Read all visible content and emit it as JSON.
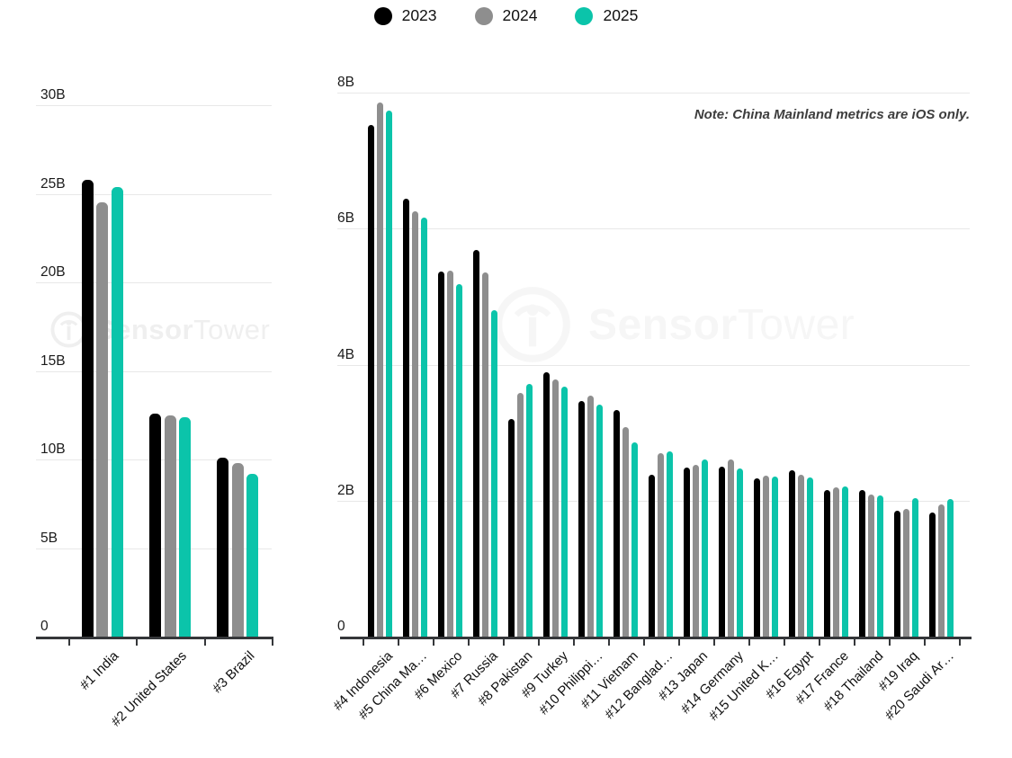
{
  "legend": {
    "items": [
      {
        "label": "2023",
        "color": "#000000"
      },
      {
        "label": "2024",
        "color": "#8e8e8e"
      },
      {
        "label": "2025",
        "color": "#0bc4aa"
      }
    ]
  },
  "note": "Note: China Mainland metrics are iOS only.",
  "watermark": {
    "brand_bold": "Sensor",
    "brand_light": "Tower"
  },
  "colors": {
    "series_2023": "#000000",
    "series_2024": "#8e8e8e",
    "series_2025": "#0bc4aa",
    "axis": "#35373a",
    "gridline": "#e8e8e8",
    "note_text": "#3d3d3d"
  },
  "chart_data": [
    {
      "type": "bar",
      "title": "",
      "unit": "billions of downloads",
      "categories": [
        "#1 India",
        "#2 United States",
        "#3 Brazil"
      ],
      "series": [
        {
          "name": "2023",
          "color": "#000000",
          "values": [
            25.8,
            12.6,
            10.1
          ]
        },
        {
          "name": "2024",
          "color": "#8e8e8e",
          "values": [
            24.5,
            12.5,
            9.8
          ]
        },
        {
          "name": "2025",
          "color": "#0bc4aa",
          "values": [
            25.4,
            12.4,
            9.2
          ]
        }
      ],
      "ylim": [
        0,
        30
      ],
      "yticks": [
        {
          "v": 0,
          "label": "0"
        },
        {
          "v": 5,
          "label": "5B"
        },
        {
          "v": 10,
          "label": "10B"
        },
        {
          "v": 15,
          "label": "15B"
        },
        {
          "v": 20,
          "label": "20B"
        },
        {
          "v": 25,
          "label": "25B"
        },
        {
          "v": 30,
          "label": "30B"
        }
      ],
      "grid": true,
      "legend_position": "top"
    },
    {
      "type": "bar",
      "title": "",
      "unit": "billions of downloads",
      "categories": [
        "#4 Indonesia",
        "#5 China Ma…",
        "#6 Mexico",
        "#7 Russia",
        "#8 Pakistan",
        "#9 Turkey",
        "#10 Philippi…",
        "#11 Vietnam",
        "#12 Banglad…",
        "#13 Japan",
        "#14 Germany",
        "#15 United K…",
        "#16 Egypt",
        "#17 France",
        "#18 Thailand",
        "#19 Iraq",
        "#20 Saudi Ar…"
      ],
      "series": [
        {
          "name": "2023",
          "color": "#000000",
          "values": [
            7.53,
            6.44,
            5.37,
            5.69,
            3.2,
            3.89,
            3.47,
            3.33,
            2.38,
            2.48,
            2.5,
            2.33,
            2.45,
            2.15,
            2.16,
            1.85,
            1.83
          ]
        },
        {
          "name": "2024",
          "color": "#8e8e8e",
          "values": [
            7.86,
            6.25,
            5.38,
            5.35,
            3.59,
            3.78,
            3.55,
            3.08,
            2.7,
            2.52,
            2.6,
            2.37,
            2.38,
            2.19,
            2.09,
            1.88,
            1.94
          ]
        },
        {
          "name": "2025",
          "color": "#0bc4aa",
          "values": [
            7.73,
            6.16,
            5.18,
            4.8,
            3.71,
            3.67,
            3.41,
            2.85,
            2.72,
            2.61,
            2.47,
            2.35,
            2.34,
            2.21,
            2.07,
            2.03,
            2.02
          ]
        }
      ],
      "ylim": [
        0,
        8
      ],
      "yticks": [
        {
          "v": 0,
          "label": "0"
        },
        {
          "v": 2,
          "label": "2B"
        },
        {
          "v": 4,
          "label": "4B"
        },
        {
          "v": 6,
          "label": "6B"
        },
        {
          "v": 8,
          "label": "8B"
        }
      ],
      "grid": true,
      "legend_position": "top"
    }
  ]
}
